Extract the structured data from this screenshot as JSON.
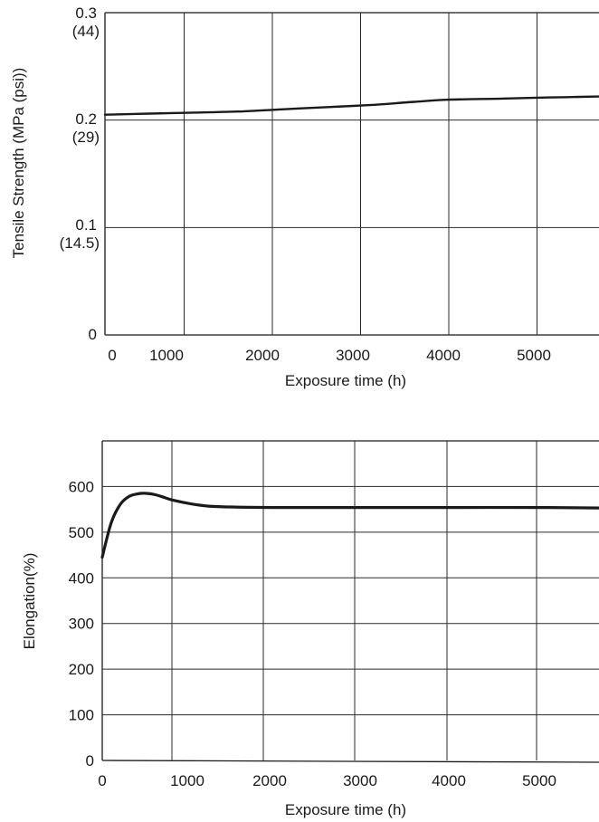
{
  "chart_data": [
    {
      "type": "line",
      "xlabel": "Exposure time (h)",
      "ylabel": "Tensile Strength (MPa (psi))",
      "xlim": [
        0,
        5600
      ],
      "ylim": [
        0,
        0.3
      ],
      "x_ticks": [
        "0",
        "1000",
        "2000",
        "3000",
        "4000",
        "5000"
      ],
      "y_ticks": [
        {
          "value": 0.3,
          "label": "0.3",
          "sublabel": "(44)"
        },
        {
          "value": 0.2,
          "label": "0.2",
          "sublabel": "(29)"
        },
        {
          "value": 0.1,
          "label": "0.1",
          "sublabel": "(14.5)"
        },
        {
          "value": 0,
          "label": "0",
          "sublabel": ""
        }
      ],
      "grid": true,
      "series": [
        {
          "x": [
            0,
            500,
            1000,
            1500,
            2000,
            2500,
            3000,
            3500,
            3900,
            4500,
            5000,
            5600
          ],
          "values": [
            0.205,
            0.206,
            0.207,
            0.208,
            0.21,
            0.212,
            0.214,
            0.217,
            0.219,
            0.22,
            0.221,
            0.222
          ]
        }
      ]
    },
    {
      "type": "line",
      "xlabel": "Exposure time (h)",
      "ylabel": "Elongation(%)",
      "xlim": [
        0,
        5600
      ],
      "ylim": [
        0,
        700
      ],
      "x_ticks": [
        "0",
        "1000",
        "2000",
        "3000",
        "4000",
        "5000"
      ],
      "y_ticks": [
        {
          "value": 0,
          "label": "0"
        },
        {
          "value": 100,
          "label": "100"
        },
        {
          "value": 200,
          "label": "200"
        },
        {
          "value": 300,
          "label": "300"
        },
        {
          "value": 400,
          "label": "400"
        },
        {
          "value": 500,
          "label": "500"
        },
        {
          "value": 600,
          "label": "600"
        }
      ],
      "grid": true,
      "series": [
        {
          "x": [
            0,
            100,
            200,
            300,
            400,
            500,
            600,
            700,
            800,
            1000,
            1200,
            1500,
            2000,
            3000,
            4000,
            5000,
            5600
          ],
          "values": [
            445,
            520,
            560,
            578,
            584,
            585,
            582,
            576,
            570,
            562,
            557,
            555,
            554,
            554,
            554,
            554,
            553
          ]
        }
      ]
    }
  ]
}
